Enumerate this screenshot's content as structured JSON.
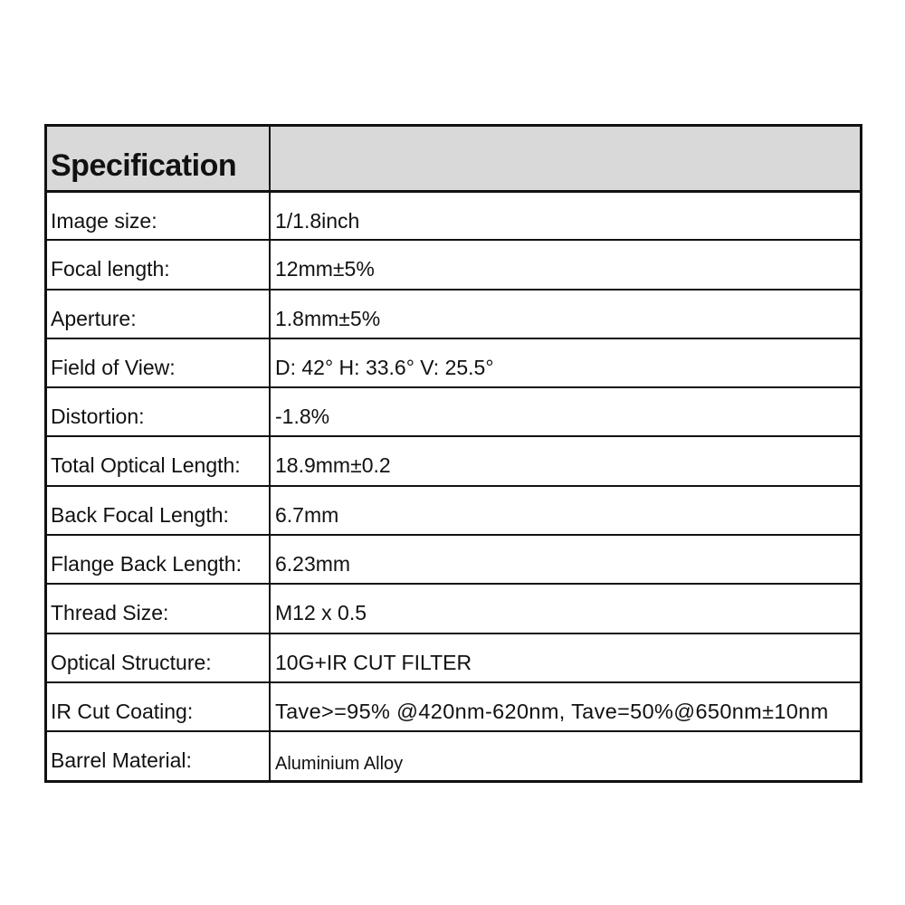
{
  "header": {
    "title": "Specification",
    "value": ""
  },
  "rows": [
    {
      "label": "Image size:",
      "value": "1/1.8inch"
    },
    {
      "label": "Focal length:",
      "value": "12mm±5%"
    },
    {
      "label": "Aperture:",
      "value": "1.8mm±5%"
    },
    {
      "label": "Field of View:",
      "value": "D: 42° H: 33.6° V: 25.5°"
    },
    {
      "label": "Distortion:",
      "value": "-1.8%"
    },
    {
      "label": "Total Optical Length:",
      "value": "18.9mm±0.2"
    },
    {
      "label": "Back Focal Length:",
      "value": "6.7mm"
    },
    {
      "label": "Flange Back Length:",
      "value": "6.23mm"
    },
    {
      "label": "Thread Size:",
      "value": "M12 x 0.5"
    },
    {
      "label": "Optical Structure:",
      "value": "10G+IR CUT FILTER"
    },
    {
      "label": "IR Cut Coating:",
      "value": "Tave>=95% @420nm-620nm, Tave=50%@650nm±10nm"
    },
    {
      "label": "Barrel Material:",
      "value": "Aluminium Alloy"
    }
  ],
  "colors": {
    "header_bg": "#d9d9d9",
    "border": "#111111"
  }
}
